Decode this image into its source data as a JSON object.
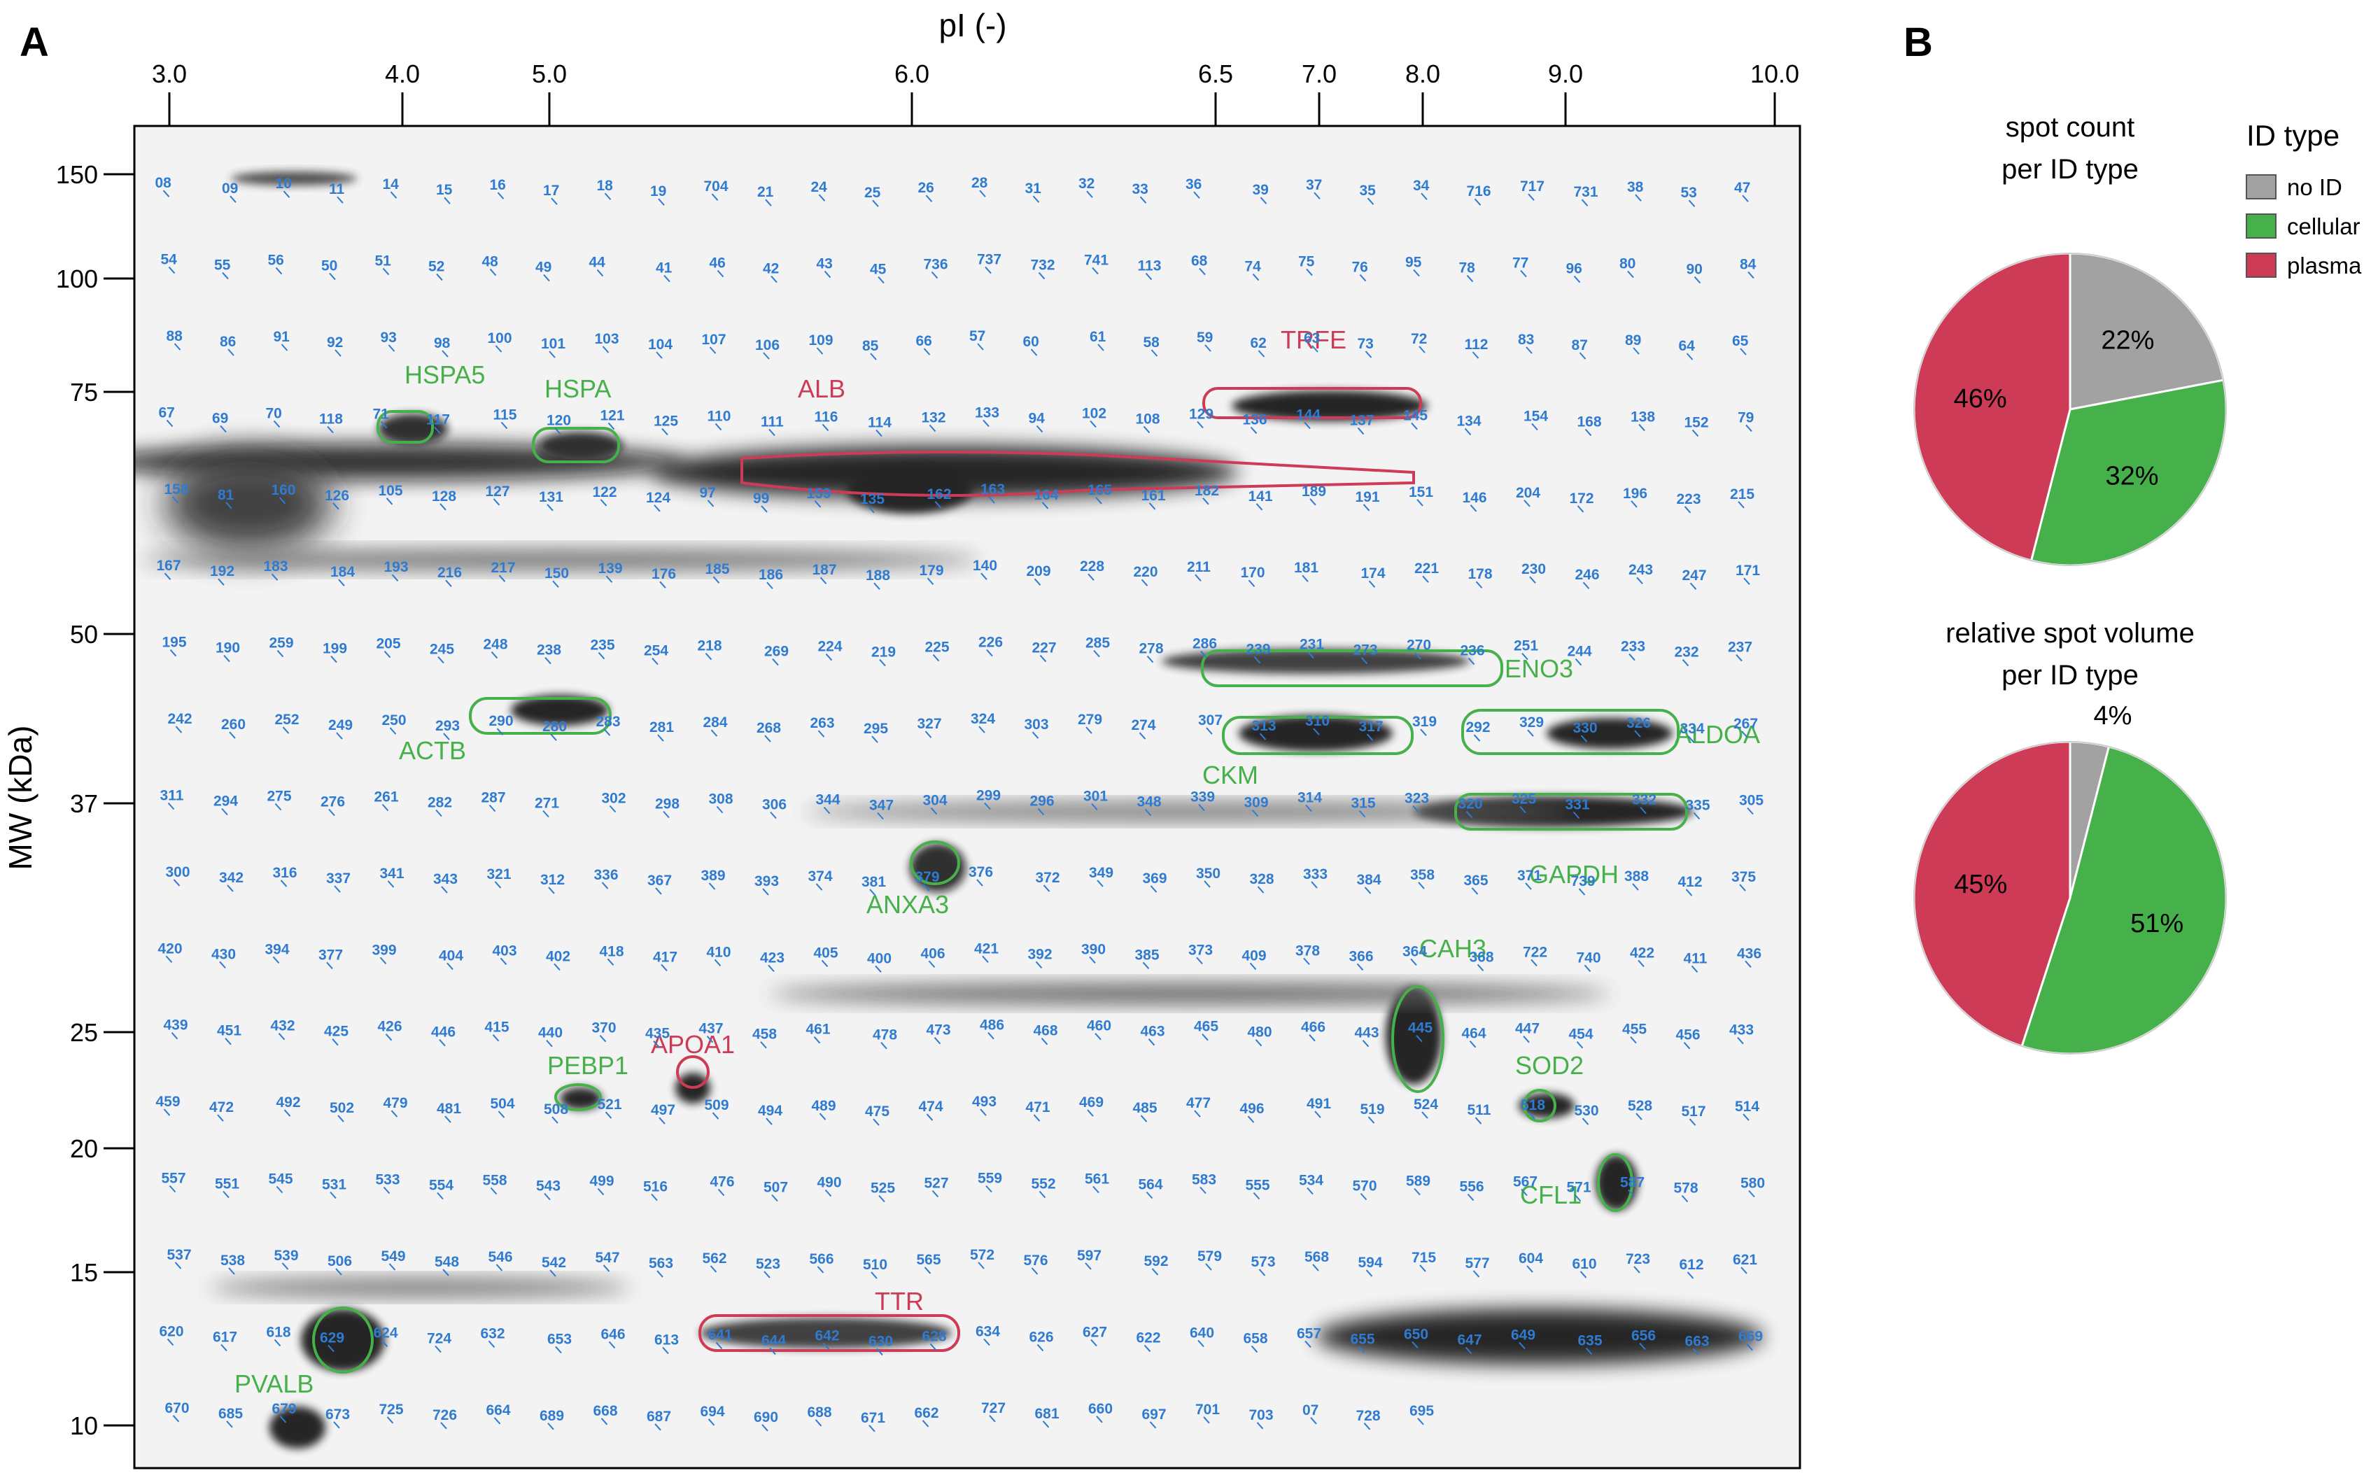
{
  "panel_a": {
    "letter": "A",
    "x_title": "pI (-)",
    "y_title": "MW (kDa)",
    "x_ticks": [
      "3.0",
      "4.0",
      "5.0",
      "6.0",
      "6.5",
      "7.0",
      "8.0",
      "9.0",
      "10.0"
    ],
    "y_ticks": [
      "150",
      "100",
      "75",
      "50",
      "37",
      "25",
      "20",
      "15",
      "10"
    ]
  },
  "panel_b": {
    "letter": "B",
    "legend_title": "ID type",
    "legend_labels": [
      "no ID",
      "cellular",
      "plasma"
    ],
    "pie1_title_line1": "spot count",
    "pie1_title_line2": "per ID type",
    "pie2_title_line1": "relative spot volume",
    "pie2_title_line2": "per ID type"
  },
  "colors": {
    "no_id": "#a2a2a2",
    "cellular": "#46b04a",
    "plasma": "#cd3b56",
    "spot_label": "#2f7bd1",
    "gel_background": "#f3f3f3",
    "gel_spot": "#000000"
  },
  "chart_data": [
    {
      "type": "scatter",
      "title": "2D gel electrophoresis spot map",
      "xlabel": "pI (-)",
      "ylabel": "MW (kDa)",
      "y_scale": "log",
      "x_ticks": [
        3.0,
        4.0,
        5.0,
        6.0,
        6.5,
        7.0,
        8.0,
        9.0,
        10.0
      ],
      "y_ticks": [
        150,
        100,
        75,
        50,
        37,
        25,
        20,
        15,
        10
      ],
      "protein_annotations": [
        {
          "name": "HSPA5",
          "class": "cellular"
        },
        {
          "name": "HSPA",
          "class": "cellular"
        },
        {
          "name": "ALB",
          "class": "plasma"
        },
        {
          "name": "TRFE",
          "class": "plasma"
        },
        {
          "name": "ENO3",
          "class": "cellular"
        },
        {
          "name": "ACTB",
          "class": "cellular"
        },
        {
          "name": "CKM",
          "class": "cellular"
        },
        {
          "name": "ALDOA",
          "class": "cellular"
        },
        {
          "name": "GAPDH",
          "class": "cellular"
        },
        {
          "name": "ANXA3",
          "class": "cellular"
        },
        {
          "name": "CAH3",
          "class": "cellular"
        },
        {
          "name": "SOD2",
          "class": "cellular"
        },
        {
          "name": "PEBP1",
          "class": "cellular"
        },
        {
          "name": "APOA1",
          "class": "plasma"
        },
        {
          "name": "CFL1",
          "class": "cellular"
        },
        {
          "name": "TTR",
          "class": "plasma"
        },
        {
          "name": "PVALB",
          "class": "cellular"
        }
      ],
      "spot_labels": [
        "08",
        "09",
        "10",
        "11",
        "14",
        "15",
        "16",
        "17",
        "18",
        "19",
        "704",
        "21",
        "24",
        "25",
        "26",
        "28",
        "31",
        "32",
        "33",
        "36",
        "39",
        "37",
        "35",
        "34",
        "716",
        "717",
        "731",
        "38",
        "53",
        "47",
        "54",
        "55",
        "56",
        "50",
        "51",
        "52",
        "48",
        "49",
        "44",
        "41",
        "46",
        "42",
        "43",
        "45",
        "736",
        "737",
        "732",
        "741",
        "113",
        "68",
        "74",
        "75",
        "76",
        "95",
        "78",
        "77",
        "96",
        "80",
        "90",
        "84",
        "88",
        "86",
        "91",
        "92",
        "93",
        "98",
        "100",
        "101",
        "103",
        "104",
        "107",
        "106",
        "109",
        "85",
        "66",
        "57",
        "60",
        "61",
        "58",
        "59",
        "62",
        "63",
        "73",
        "72",
        "112",
        "83",
        "87",
        "89",
        "64",
        "65",
        "67",
        "69",
        "70",
        "118",
        "71",
        "117",
        "115",
        "120",
        "121",
        "125",
        "110",
        "111",
        "116",
        "114",
        "132",
        "133",
        "94",
        "102",
        "108",
        "129",
        "136",
        "144",
        "137",
        "145",
        "134",
        "154",
        "168",
        "138",
        "152",
        "79",
        "158",
        "81",
        "160",
        "126",
        "105",
        "128",
        "127",
        "131",
        "122",
        "124",
        "97",
        "99",
        "159",
        "135",
        "162",
        "163",
        "164",
        "165",
        "161",
        "182",
        "141",
        "189",
        "191",
        "151",
        "146",
        "204",
        "172",
        "196",
        "223",
        "215",
        "167",
        "192",
        "183",
        "184",
        "193",
        "216",
        "217",
        "150",
        "139",
        "176",
        "185",
        "186",
        "187",
        "188",
        "179",
        "140",
        "209",
        "228",
        "220",
        "211",
        "170",
        "181",
        "174",
        "221",
        "178",
        "230",
        "246",
        "243",
        "247",
        "171",
        "195",
        "190",
        "259",
        "199",
        "205",
        "245",
        "248",
        "238",
        "235",
        "254",
        "218",
        "269",
        "224",
        "219",
        "225",
        "226",
        "227",
        "285",
        "278",
        "286",
        "239",
        "231",
        "273",
        "270",
        "236",
        "251",
        "244",
        "233",
        "232",
        "237",
        "242",
        "260",
        "252",
        "249",
        "250",
        "293",
        "290",
        "280",
        "283",
        "281",
        "284",
        "268",
        "263",
        "295",
        "327",
        "324",
        "303",
        "279",
        "274",
        "307",
        "313",
        "310",
        "317",
        "319",
        "292",
        "329",
        "330",
        "326",
        "334",
        "267",
        "311",
        "294",
        "275",
        "276",
        "261",
        "282",
        "287",
        "271",
        "302",
        "298",
        "308",
        "306",
        "344",
        "347",
        "304",
        "299",
        "296",
        "301",
        "348",
        "339",
        "309",
        "314",
        "315",
        "323",
        "320",
        "325",
        "331",
        "332",
        "335",
        "305",
        "300",
        "342",
        "316",
        "337",
        "341",
        "343",
        "321",
        "312",
        "336",
        "367",
        "389",
        "393",
        "374",
        "381",
        "379",
        "376",
        "372",
        "349",
        "369",
        "350",
        "328",
        "333",
        "384",
        "358",
        "365",
        "371",
        "739",
        "388",
        "412",
        "375",
        "420",
        "430",
        "394",
        "377",
        "399",
        "404",
        "403",
        "402",
        "418",
        "417",
        "410",
        "423",
        "405",
        "400",
        "406",
        "421",
        "392",
        "390",
        "385",
        "373",
        "409",
        "378",
        "366",
        "364",
        "368",
        "722",
        "740",
        "422",
        "411",
        "436",
        "439",
        "451",
        "432",
        "425",
        "426",
        "446",
        "415",
        "440",
        "370",
        "435",
        "437",
        "458",
        "461",
        "478",
        "473",
        "486",
        "468",
        "460",
        "463",
        "465",
        "480",
        "466",
        "443",
        "445",
        "464",
        "447",
        "454",
        "455",
        "456",
        "433",
        "459",
        "472",
        "492",
        "502",
        "479",
        "481",
        "504",
        "508",
        "521",
        "497",
        "509",
        "494",
        "489",
        "475",
        "474",
        "493",
        "471",
        "469",
        "485",
        "477",
        "496",
        "491",
        "519",
        "524",
        "511",
        "518",
        "530",
        "528",
        "517",
        "514",
        "557",
        "551",
        "545",
        "531",
        "533",
        "554",
        "558",
        "543",
        "499",
        "516",
        "476",
        "507",
        "490",
        "525",
        "527",
        "559",
        "552",
        "561",
        "564",
        "583",
        "555",
        "534",
        "570",
        "589",
        "556",
        "567",
        "571",
        "587",
        "578",
        "580",
        "537",
        "538",
        "539",
        "506",
        "549",
        "548",
        "546",
        "542",
        "547",
        "563",
        "562",
        "523",
        "566",
        "510",
        "565",
        "572",
        "576",
        "597",
        "592",
        "579",
        "573",
        "568",
        "594",
        "715",
        "577",
        "604",
        "610",
        "723",
        "612",
        "621",
        "620",
        "617",
        "618",
        "629",
        "624",
        "724",
        "632",
        "653",
        "646",
        "613",
        "641",
        "644",
        "642",
        "630",
        "628",
        "634",
        "626",
        "627",
        "622",
        "640",
        "658",
        "657",
        "655",
        "650",
        "647",
        "649",
        "635",
        "656",
        "663",
        "669",
        "670",
        "685",
        "679",
        "673",
        "725",
        "726",
        "664",
        "689",
        "668",
        "687",
        "694",
        "690",
        "688",
        "671",
        "662",
        "727",
        "681",
        "660",
        "697",
        "701",
        "703",
        "07",
        "728",
        "695"
      ]
    },
    {
      "type": "pie",
      "title": "spot count per ID type",
      "labels": [
        "no ID",
        "cellular",
        "plasma"
      ],
      "values": [
        22,
        32,
        46
      ],
      "colors": [
        "#a2a2a2",
        "#46b04a",
        "#cd3b56"
      ],
      "value_labels": [
        "22%",
        "32%",
        "46%"
      ]
    },
    {
      "type": "pie",
      "title": "relative spot volume per ID type",
      "labels": [
        "no ID",
        "cellular",
        "plasma"
      ],
      "values": [
        4,
        51,
        45
      ],
      "colors": [
        "#a2a2a2",
        "#46b04a",
        "#cd3b56"
      ],
      "value_labels": [
        "4%",
        "51%",
        "45%"
      ]
    }
  ]
}
